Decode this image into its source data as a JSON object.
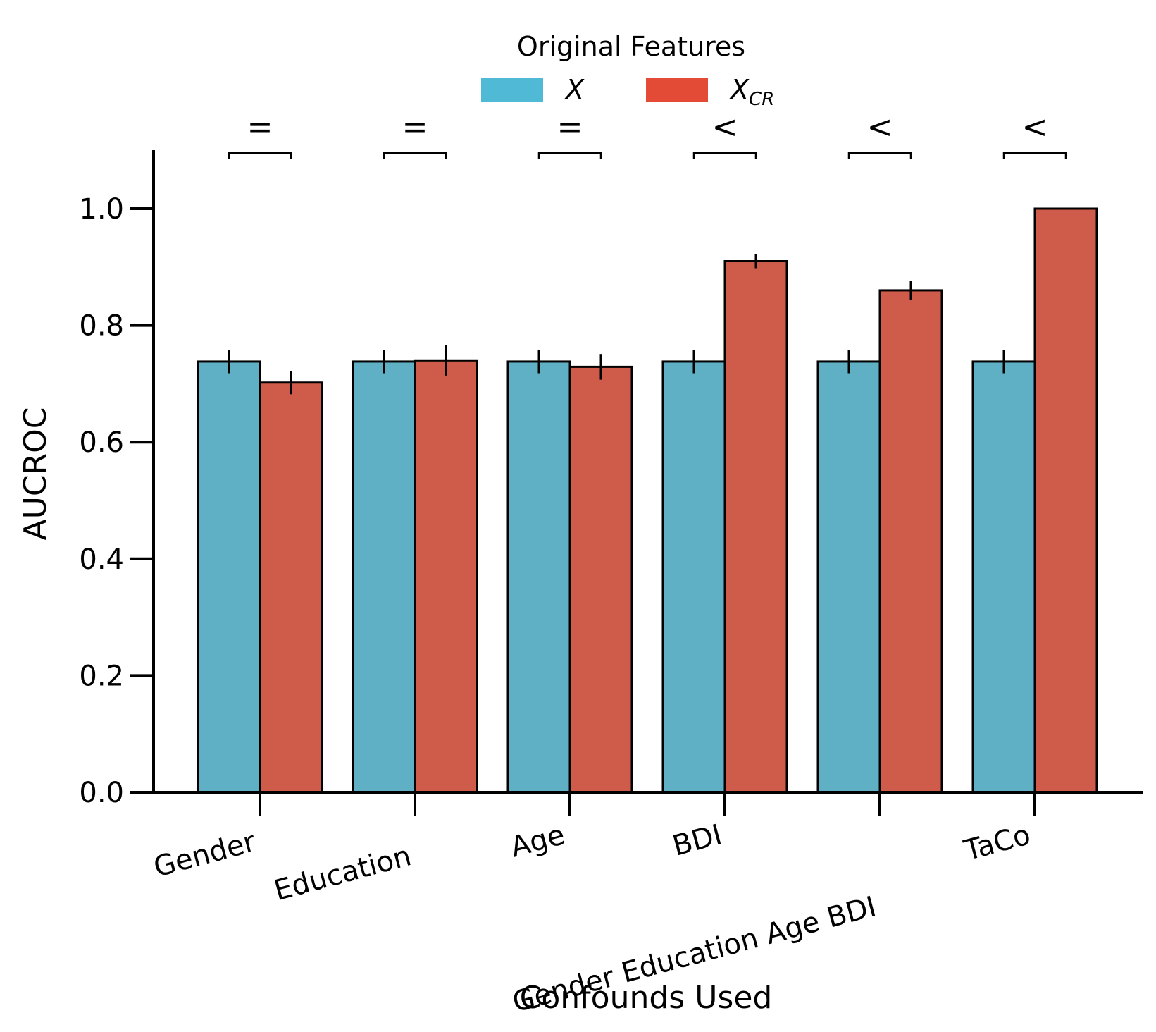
{
  "chart_data": {
    "type": "bar",
    "xlabel": "Confounds Used",
    "ylabel": "AUCROC",
    "ylim": [
      0,
      1.1
    ],
    "yticks": [
      "0.0",
      "0.2",
      "0.4",
      "0.6",
      "0.8",
      "1.0"
    ],
    "categories": [
      "Gender",
      "Education",
      "Age",
      "BDI",
      "Gender Education Age BDI",
      "TaCo"
    ],
    "series": [
      {
        "name": "X",
        "color": "#5fb0c5",
        "legend_color": "#4fb9d6",
        "values": [
          0.738,
          0.738,
          0.738,
          0.738,
          0.738,
          0.738
        ],
        "errors": [
          0.02,
          0.02,
          0.02,
          0.02,
          0.02,
          0.02
        ]
      },
      {
        "name": "X",
        "subscript": "CR",
        "color": "#cf5c4b",
        "legend_color": "#e34b36",
        "values": [
          0.702,
          0.74,
          0.729,
          0.91,
          0.86,
          1.0
        ],
        "errors": [
          0.02,
          0.026,
          0.022,
          0.012,
          0.016,
          0.0
        ]
      }
    ],
    "significance": [
      "=",
      "=",
      "=",
      "<",
      "<",
      "<"
    ],
    "legend": {
      "title": "Original Features",
      "placement": "top-center"
    },
    "grid": false
  }
}
